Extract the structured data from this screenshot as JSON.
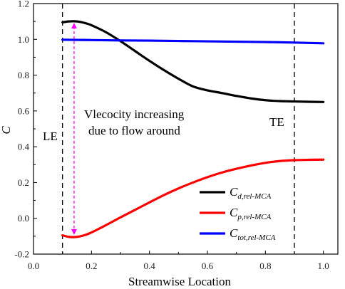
{
  "chart_data": {
    "type": "line",
    "xlabel": "Streamwise Location",
    "ylabel": "C",
    "xlim": [
      0.0,
      1.05
    ],
    "ylim": [
      -0.2,
      1.2
    ],
    "x_ticks": [
      0.0,
      0.2,
      0.4,
      0.6,
      0.8,
      1.0
    ],
    "x_tick_labels": [
      "0.0",
      "0.2",
      "0.4",
      "0.6",
      "0.8",
      "1.0"
    ],
    "y_ticks": [
      -0.2,
      0.0,
      0.2,
      0.4,
      0.6,
      0.8,
      1.0,
      1.2
    ],
    "y_tick_labels": [
      "-0.2",
      "0.0",
      "0.2",
      "0.4",
      "0.6",
      "0.8",
      "1.0",
      "1.2"
    ],
    "grid": false,
    "legend_position": "bottom-right",
    "series": [
      {
        "name_main": "C",
        "name_sub": "d,rel-MCA",
        "color": "#000000",
        "x": [
          0.1,
          0.12,
          0.14,
          0.16,
          0.18,
          0.2,
          0.25,
          0.3,
          0.35,
          0.4,
          0.45,
          0.5,
          0.55,
          0.6,
          0.65,
          0.7,
          0.75,
          0.8,
          0.85,
          0.9,
          0.95,
          1.0
        ],
        "values": [
          1.095,
          1.1,
          1.101,
          1.098,
          1.09,
          1.079,
          1.04,
          0.99,
          0.935,
          0.88,
          0.828,
          0.78,
          0.737,
          0.715,
          0.7,
          0.684,
          0.67,
          0.66,
          0.655,
          0.653,
          0.651,
          0.65
        ]
      },
      {
        "name_main": "C",
        "name_sub": "p,rel-MCA",
        "color": "#ff0000",
        "x": [
          0.1,
          0.12,
          0.14,
          0.16,
          0.18,
          0.2,
          0.25,
          0.3,
          0.35,
          0.4,
          0.45,
          0.5,
          0.55,
          0.6,
          0.65,
          0.7,
          0.75,
          0.8,
          0.85,
          0.9,
          0.95,
          1.0
        ],
        "values": [
          -0.095,
          -0.103,
          -0.105,
          -0.101,
          -0.092,
          -0.079,
          -0.038,
          0.005,
          0.047,
          0.089,
          0.13,
          0.167,
          0.2,
          0.23,
          0.256,
          0.277,
          0.295,
          0.31,
          0.32,
          0.325,
          0.327,
          0.328
        ]
      },
      {
        "name_main": "C",
        "name_sub": "tot,rel-MCA",
        "color": "#0000ff",
        "x": [
          0.1,
          0.2,
          0.3,
          0.4,
          0.5,
          0.6,
          0.7,
          0.8,
          0.9,
          1.0
        ],
        "values": [
          0.998,
          0.996,
          0.994,
          0.993,
          0.991,
          0.989,
          0.987,
          0.985,
          0.982,
          0.978
        ]
      }
    ],
    "reference_lines": [
      {
        "x": 0.1,
        "label": "LE"
      },
      {
        "x": 0.9,
        "label": "TE"
      }
    ],
    "arrow": {
      "x": 0.14,
      "y_from": -0.1,
      "y_to": 1.1,
      "color": "#ff00ff"
    },
    "annotations": [
      "Vlecocity increasing",
      "due to flow around"
    ]
  }
}
